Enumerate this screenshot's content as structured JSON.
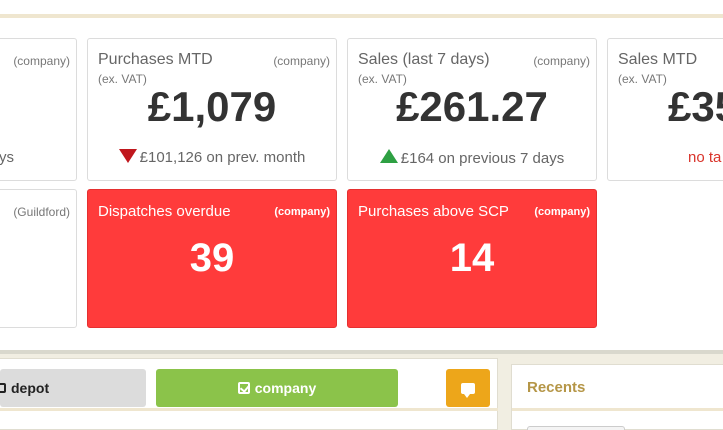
{
  "tiles": {
    "left_partial_1": {
      "scope": "(company)",
      "fragment": "ys"
    },
    "purchases_mtd": {
      "title": "Purchases MTD",
      "scope": "(company)",
      "sub": "(ex. VAT)",
      "value": "£1,079",
      "comparison": "£101,126 on prev. month",
      "trend": "down",
      "trend_color": "#c0171d"
    },
    "sales_7d": {
      "title": "Sales (last 7 days)",
      "scope": "(company)",
      "sub": "(ex. VAT)",
      "value": "£261.27",
      "comparison": "£164 on previous 7 days",
      "trend": "up",
      "trend_color": "#2ea043"
    },
    "sales_mtd": {
      "title": "Sales MTD",
      "sub": "(ex. VAT)",
      "value": "£35",
      "note": "no ta"
    },
    "left_partial_2": {
      "scope": "(Guildford)"
    },
    "dispatches_overdue": {
      "title": "Dispatches overdue",
      "scope": "(company)",
      "value": "39",
      "bg_color": "#ff3b3b"
    },
    "purchases_above_scp": {
      "title": "Purchases above SCP",
      "scope": "(company)",
      "value": "14",
      "bg_color": "#ff3b3b"
    }
  },
  "toolbar": {
    "depot_label": "depot",
    "company_label": "company",
    "company_color": "#8bc34a",
    "chat_color": "#eda61a"
  },
  "recents": {
    "header": "Recents"
  }
}
